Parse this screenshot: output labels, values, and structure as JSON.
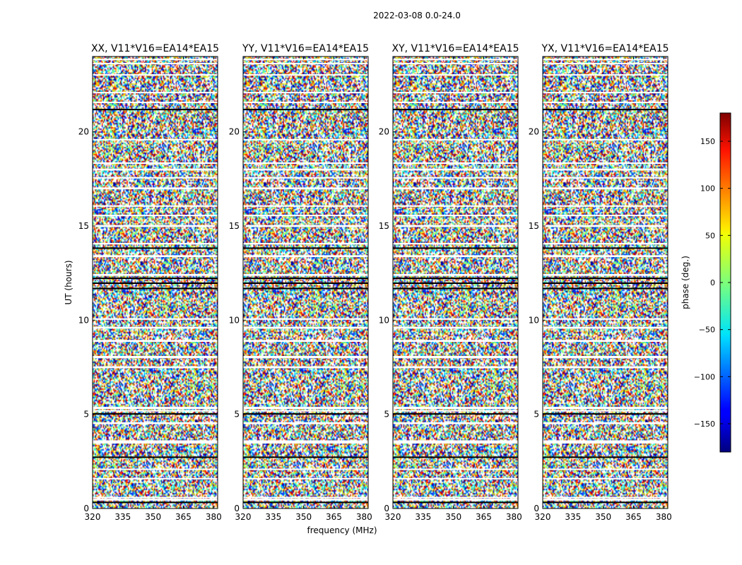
{
  "chart_data": {
    "type": "heatmap",
    "title": "2022-03-08 0.0-24.0",
    "xlabel": "frequency (MHz)",
    "ylabel": "UT (hours)",
    "xlim": [
      320,
      382
    ],
    "ylim": [
      0,
      24
    ],
    "xticks": [
      320,
      335,
      350,
      365,
      380
    ],
    "yticks": [
      0,
      5,
      10,
      15,
      20
    ],
    "panels": [
      {
        "name": "XX, V11*V16=EA14*EA15"
      },
      {
        "name": "YY, V11*V16=EA14*EA15"
      },
      {
        "name": "XY, V11*V16=EA14*EA15"
      },
      {
        "name": "YX, V11*V16=EA14*EA15"
      }
    ],
    "colorbar": {
      "label": "phase (deg.)",
      "colormap": "jet",
      "range": [
        -180,
        180
      ],
      "ticks": [
        -150,
        -100,
        -50,
        0,
        50,
        100,
        150
      ]
    },
    "blank_time_bands_hours": [
      [
        0.42,
        0.52
      ],
      [
        0.55,
        0.62
      ],
      [
        1.55,
        1.62
      ],
      [
        2.05,
        2.12
      ],
      [
        3.45,
        3.62
      ],
      [
        4.48,
        4.58
      ],
      [
        5.15,
        5.22
      ],
      [
        5.28,
        5.4
      ],
      [
        7.45,
        7.55
      ],
      [
        7.98,
        8.1
      ],
      [
        8.85,
        8.95
      ],
      [
        9.55,
        9.65
      ],
      [
        10.02,
        10.1
      ],
      [
        12.35,
        12.45
      ],
      [
        13.35,
        13.45
      ],
      [
        14.02,
        14.1
      ],
      [
        14.95,
        15.05
      ],
      [
        15.52,
        15.6
      ],
      [
        16.02,
        16.1
      ],
      [
        16.95,
        17.05
      ],
      [
        17.52,
        17.6
      ],
      [
        17.95,
        18.05
      ],
      [
        18.3,
        18.38
      ],
      [
        19.55,
        19.62
      ],
      [
        21.55,
        21.6
      ],
      [
        22.05,
        22.12
      ],
      [
        23.0,
        23.06
      ],
      [
        23.6,
        23.66
      ],
      [
        23.8,
        23.88
      ]
    ],
    "black_time_bands_hours": [
      [
        0.32,
        0.36
      ],
      [
        2.72,
        2.76
      ],
      [
        5.0,
        5.06
      ],
      [
        11.65,
        11.72
      ],
      [
        11.95,
        12.0
      ],
      [
        12.2,
        12.26
      ],
      [
        13.8,
        13.86
      ],
      [
        21.15,
        21.22
      ]
    ]
  }
}
